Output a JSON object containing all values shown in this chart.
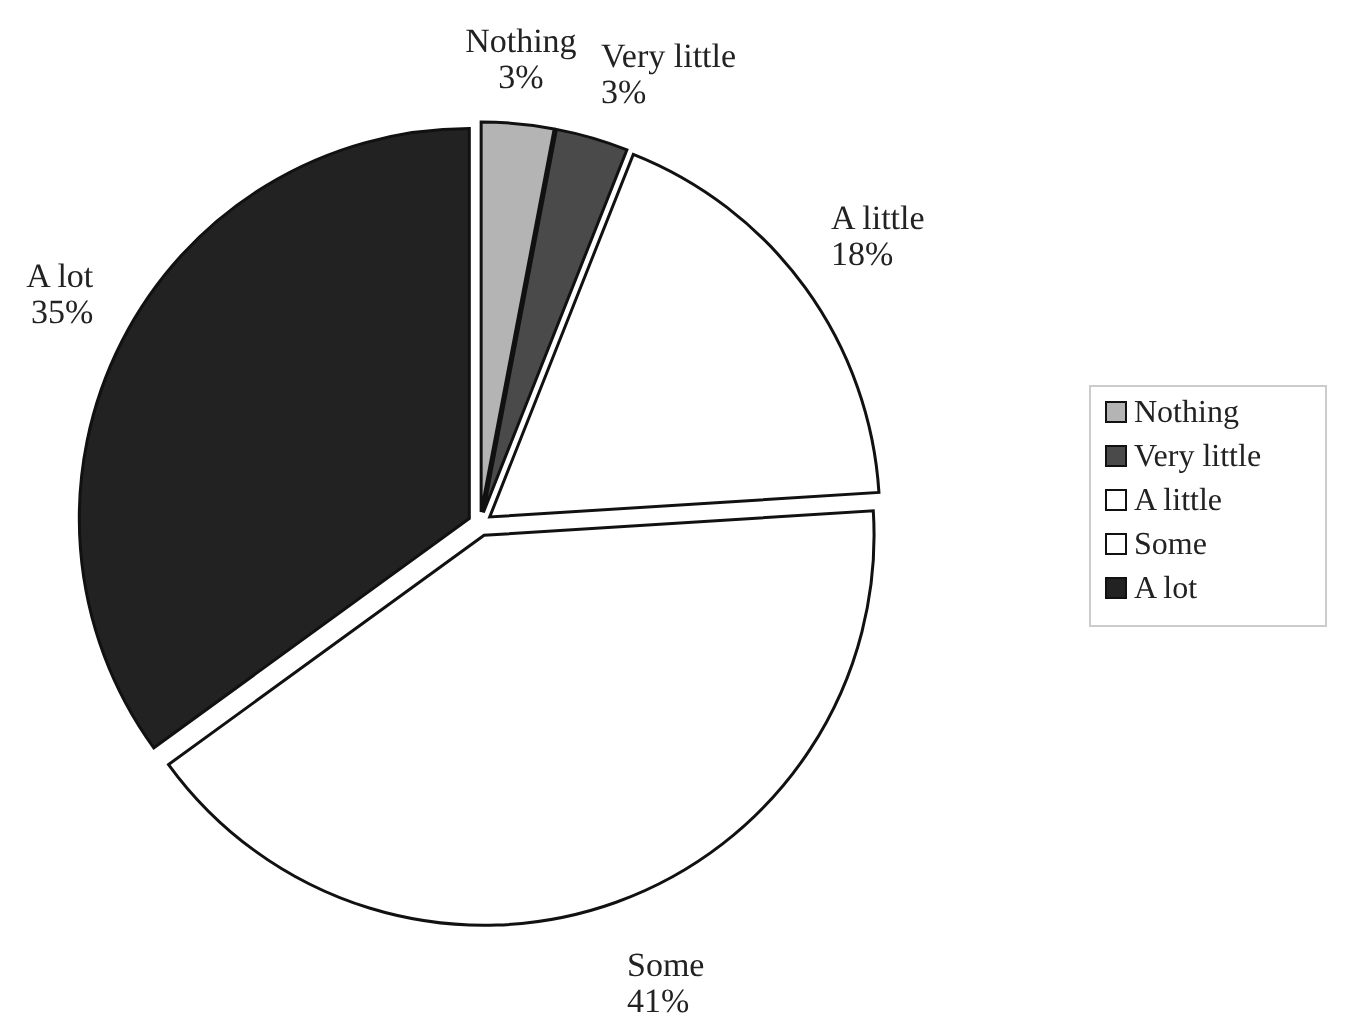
{
  "chart_data": {
    "type": "pie",
    "categories": [
      "Nothing",
      "Very little",
      "A little",
      "Some",
      "A lot"
    ],
    "values": [
      3,
      3,
      18,
      41,
      35
    ],
    "value_labels": [
      "3%",
      "3%",
      "18%",
      "41%",
      "35%"
    ],
    "colors": [
      "#b4b4b4",
      "#4a4a4a",
      "#ffffff",
      "#ffffff",
      "#222222"
    ],
    "legend": "right"
  }
}
